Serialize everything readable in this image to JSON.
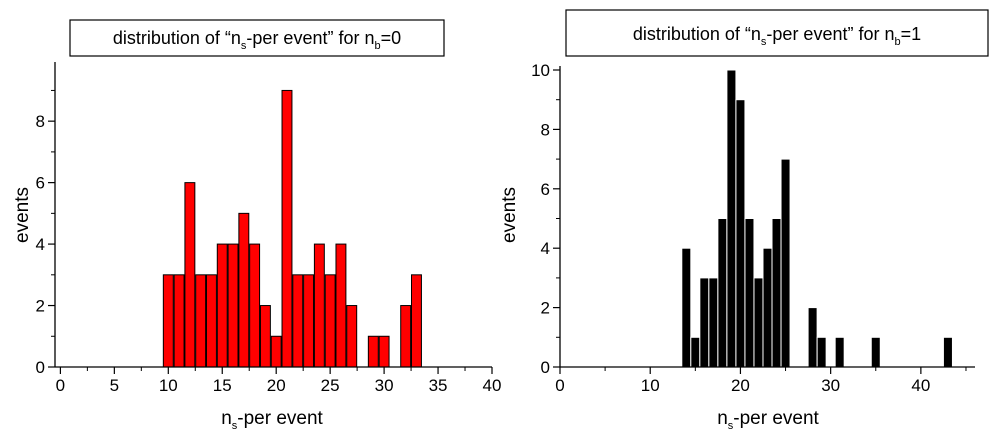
{
  "chart_data": [
    {
      "type": "bar",
      "title": {
        "pre": "distribution of “n",
        "sub1": "s",
        "mid": "-per event” for n",
        "sub2": "b",
        "post": "=0"
      },
      "xlabel": {
        "pre": "n",
        "sub": "s",
        "post": "-per event"
      },
      "ylabel": "events",
      "xlim": [
        -0.5,
        40
      ],
      "ylim": [
        0,
        9.6
      ],
      "xticks": [
        0,
        5,
        10,
        15,
        20,
        25,
        30,
        35,
        40
      ],
      "yticks": [
        0,
        2,
        4,
        6,
        8
      ],
      "bar_color": "#ff0000",
      "bar_edge": "#000000",
      "x": [
        10,
        11,
        12,
        13,
        14,
        15,
        16,
        17,
        18,
        19,
        20,
        21,
        22,
        23,
        24,
        25,
        26,
        27,
        29,
        30,
        32,
        33
      ],
      "values": [
        3,
        3,
        6,
        3,
        3,
        4,
        4,
        5,
        4,
        2,
        1,
        9,
        3,
        3,
        4,
        3,
        4,
        2,
        1,
        1,
        2,
        3
      ]
    },
    {
      "type": "bar",
      "title": {
        "pre": "distribution of “n",
        "sub1": "s",
        "mid": "-per event” for n",
        "sub2": "b",
        "post": "=1"
      },
      "xlabel": {
        "pre": "n",
        "sub": "s",
        "post": "-per event"
      },
      "ylabel": "events",
      "xlim": [
        0,
        46
      ],
      "ylim": [
        0,
        10
      ],
      "xticks": [
        0,
        10,
        20,
        30,
        40
      ],
      "yticks": [
        0,
        2,
        4,
        6,
        8,
        10
      ],
      "bar_color": "#000000",
      "bar_edge": "#ffffff",
      "x": [
        14,
        15,
        16,
        17,
        18,
        19,
        20,
        21,
        22,
        23,
        24,
        25,
        28,
        29,
        31,
        35,
        43
      ],
      "values": [
        4,
        1,
        3,
        3,
        5,
        10,
        9,
        5,
        3,
        4,
        5,
        7,
        2,
        1,
        1,
        1,
        1
      ]
    }
  ]
}
